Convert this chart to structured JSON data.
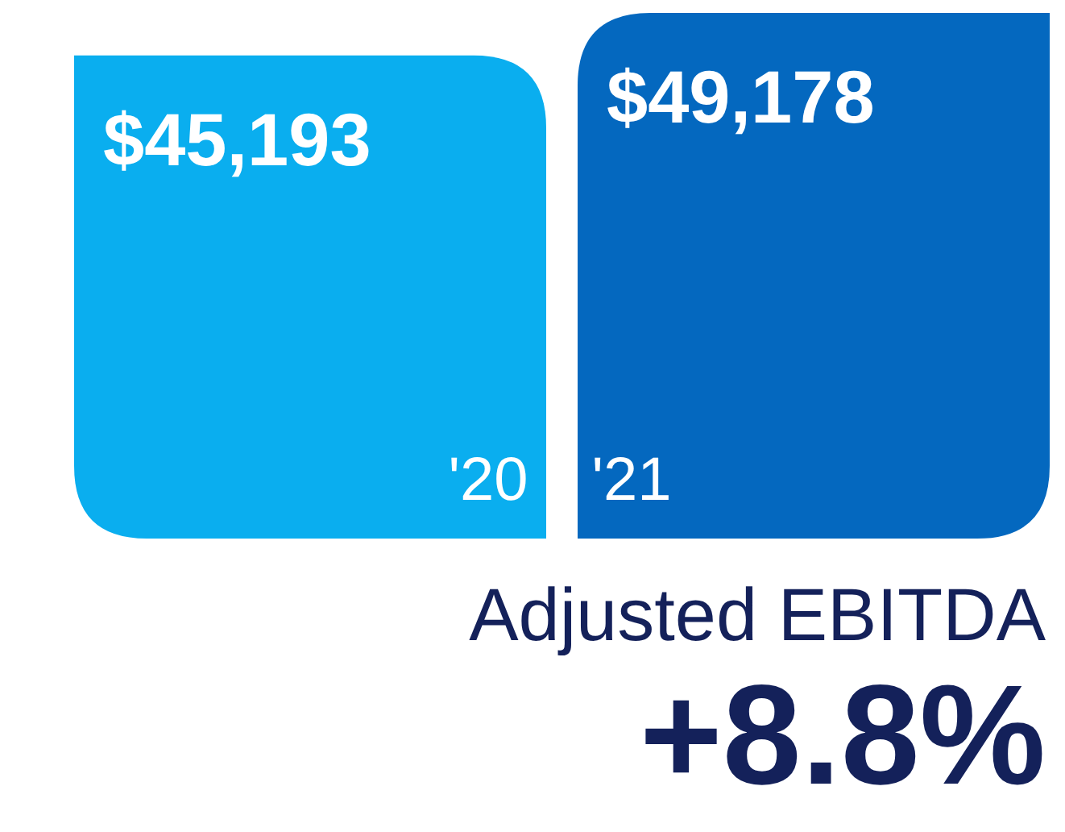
{
  "chart_data": {
    "type": "bar",
    "title": "Adjusted EBITDA",
    "categories": [
      null,
      null
    ],
    "values": [
      45193,
      49178
    ],
    "colors": [
      "#0aaeef",
      "#0468bf"
    ],
    "value_labels": [
      "$45,193",
      "$49,178"
    ],
    "annotations": [
      "'20",
      "'21",
      "+8.8%"
    ]
  }
}
